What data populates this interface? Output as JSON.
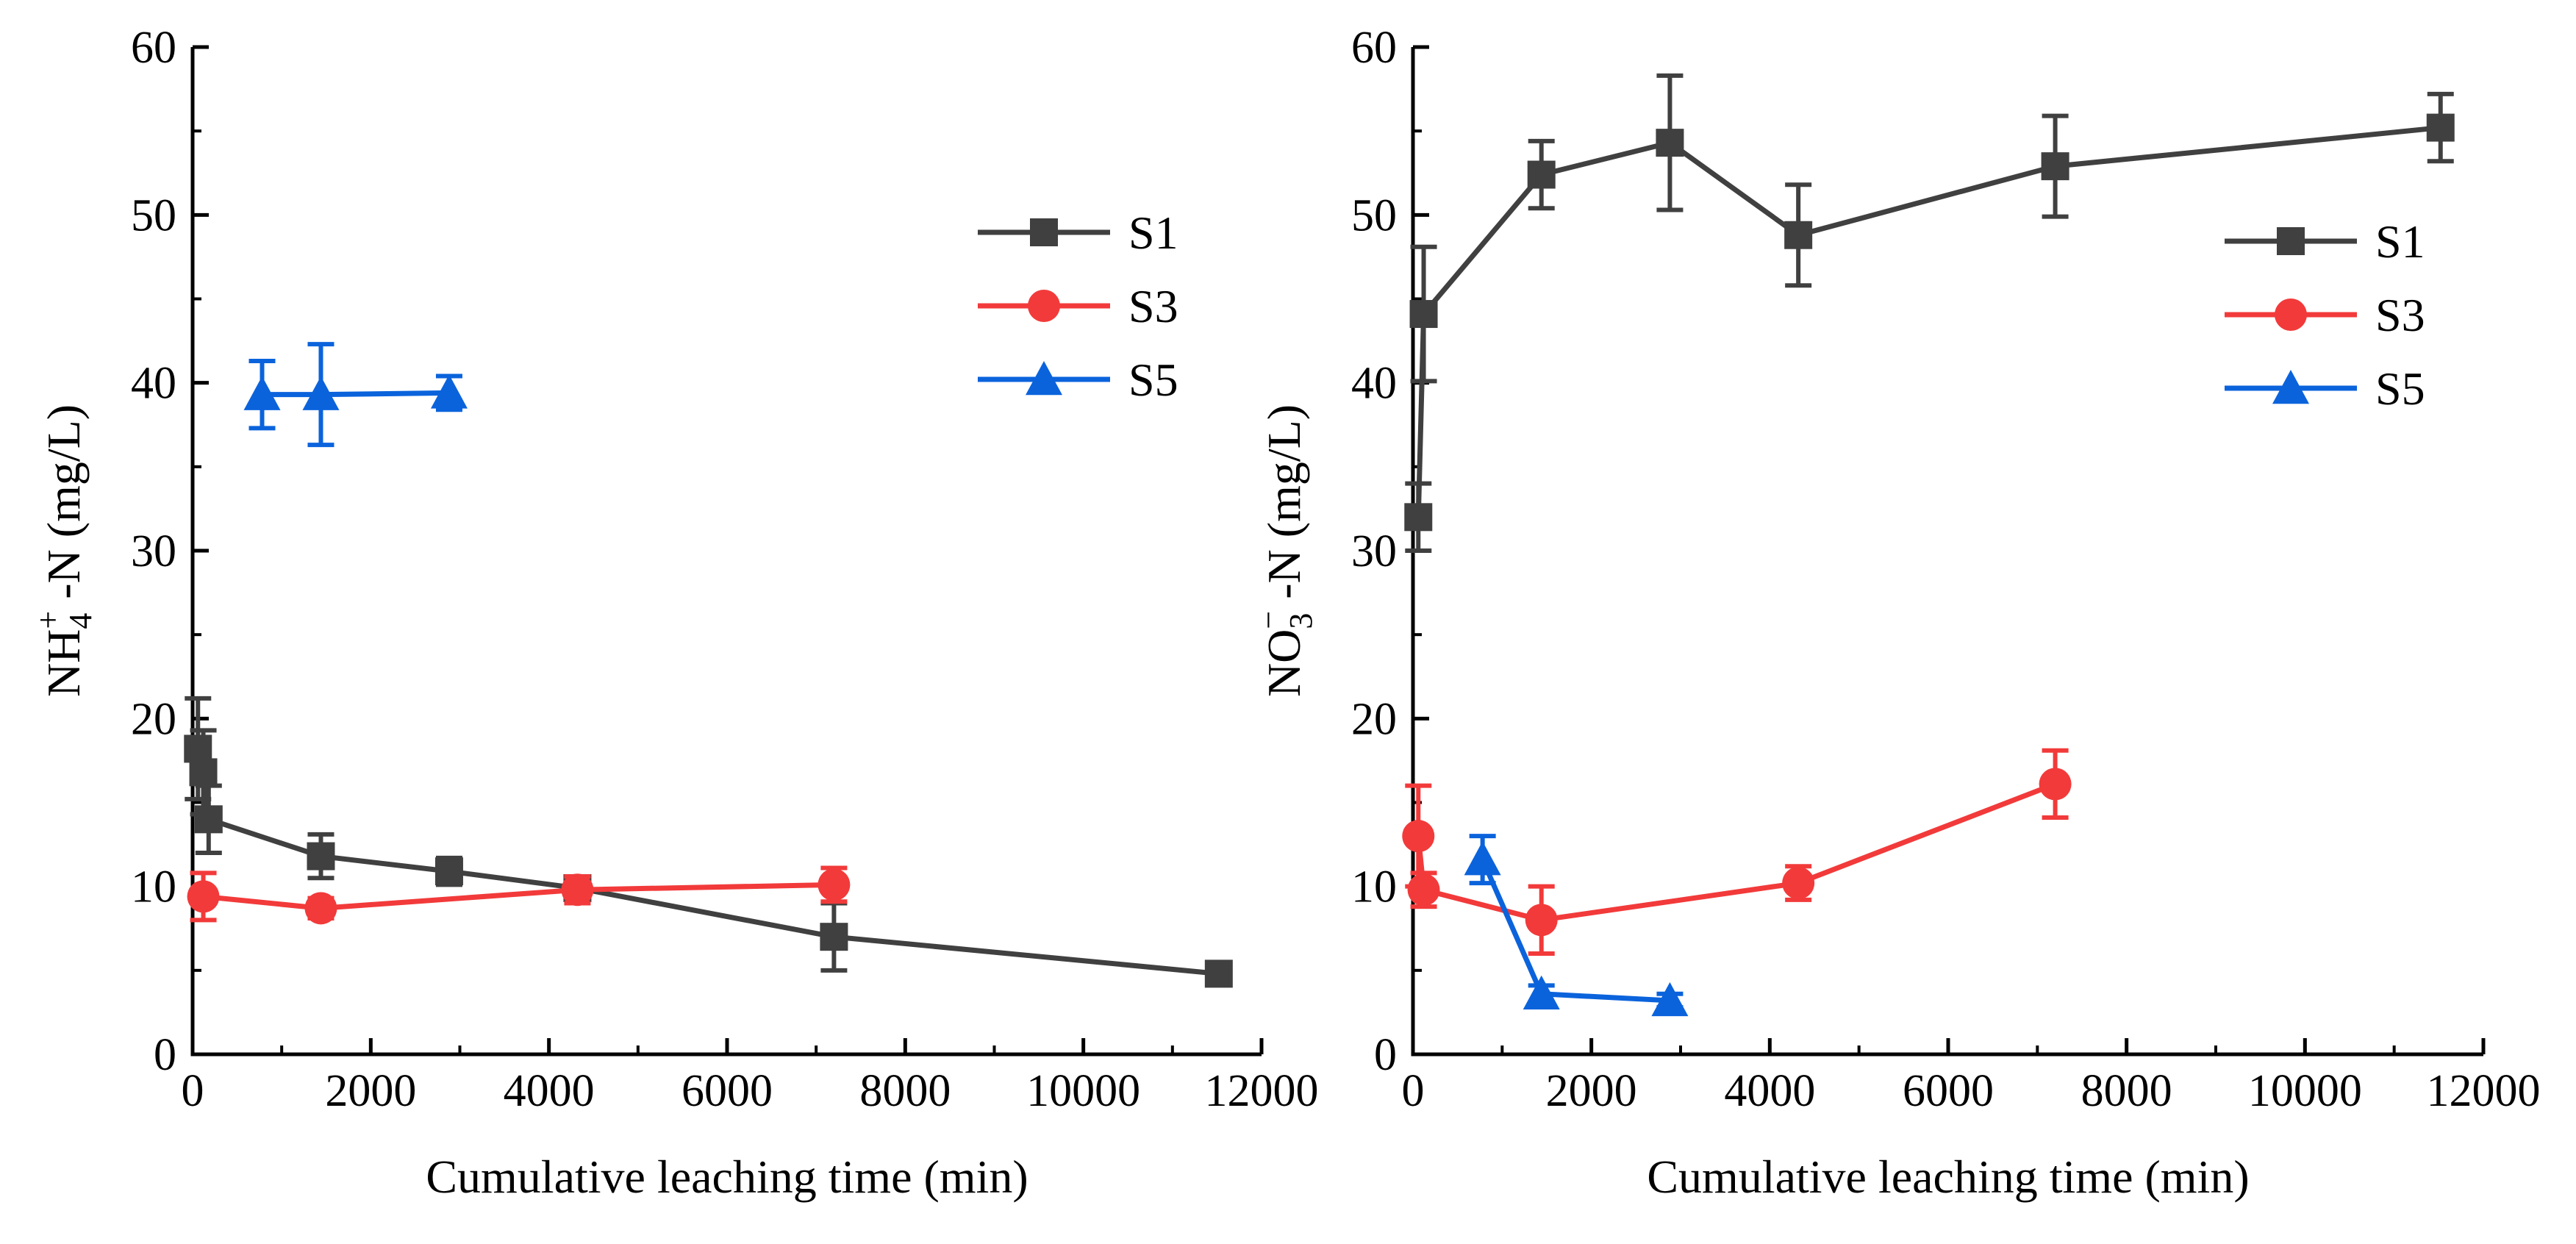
{
  "colors": {
    "S1": "#404040",
    "S3": "#f23a3a",
    "S5": "#0b63dc"
  },
  "chart_data": [
    {
      "type": "line",
      "title": "",
      "xlabel": "Cumulative leaching time (min)",
      "ylabel": {
        "prefix": "NH",
        "sub": "4",
        "sup": "+",
        "suffix": "-N (mg/L)"
      },
      "xlim": [
        0,
        12000
      ],
      "ylim": [
        0,
        60
      ],
      "xticks": [
        "0",
        "2000",
        "4000",
        "6000",
        "8000",
        "10000",
        "12000"
      ],
      "yticks": [
        "0",
        "10",
        "20",
        "30",
        "40",
        "50",
        "60"
      ],
      "grid": false,
      "legend_position": "top-right",
      "series": [
        {
          "name": "S1",
          "marker": "square",
          "x": [
            60,
            120,
            180,
            1440,
            2880,
            4320,
            7200,
            11520
          ],
          "y": [
            18.2,
            16.8,
            14.0,
            11.8,
            10.9,
            9.9,
            7.0,
            4.8
          ],
          "err": [
            3.0,
            2.5,
            2.0,
            1.3,
            0.8,
            0.7,
            2.0,
            0.6
          ]
        },
        {
          "name": "S3",
          "marker": "circle",
          "x": [
            120,
            1440,
            4320,
            7200
          ],
          "y": [
            9.4,
            8.7,
            9.8,
            10.1
          ],
          "err": [
            1.4,
            0.6,
            0.8,
            1.0
          ]
        },
        {
          "name": "S5",
          "marker": "triangle",
          "x": [
            780,
            1440,
            2880
          ],
          "y": [
            39.3,
            39.3,
            39.4
          ],
          "err": [
            2.0,
            3.0,
            1.0
          ]
        }
      ]
    },
    {
      "type": "line",
      "title": "",
      "xlabel": "Cumulative leaching time (min)",
      "ylabel": {
        "prefix": "NO",
        "sub": "3",
        "sup": "−",
        "suffix": "-N (mg/L)"
      },
      "xlim": [
        0,
        12000
      ],
      "ylim": [
        0,
        60
      ],
      "xticks": [
        "0",
        "2000",
        "4000",
        "6000",
        "8000",
        "10000",
        "12000"
      ],
      "yticks": [
        "0",
        "10",
        "20",
        "30",
        "40",
        "50",
        "60"
      ],
      "grid": false,
      "legend_position": "top-right",
      "series": [
        {
          "name": "S1",
          "marker": "square",
          "x": [
            60,
            120,
            1440,
            2880,
            4320,
            7200,
            11520
          ],
          "y": [
            32.0,
            44.1,
            52.4,
            54.3,
            48.8,
            52.9,
            55.2
          ],
          "err": [
            2.0,
            4.0,
            2.0,
            4.0,
            3.0,
            3.0,
            2.0
          ]
        },
        {
          "name": "S3",
          "marker": "circle",
          "x": [
            60,
            120,
            1440,
            4320,
            7200
          ],
          "y": [
            13.0,
            9.8,
            8.0,
            10.2,
            16.1
          ],
          "err": [
            3.0,
            1.0,
            2.0,
            1.0,
            2.0
          ]
        },
        {
          "name": "S5",
          "marker": "triangle",
          "x": [
            780,
            1440,
            2880
          ],
          "y": [
            11.6,
            3.6,
            3.2
          ],
          "err": [
            1.4,
            0.5,
            0.4
          ]
        }
      ]
    }
  ]
}
